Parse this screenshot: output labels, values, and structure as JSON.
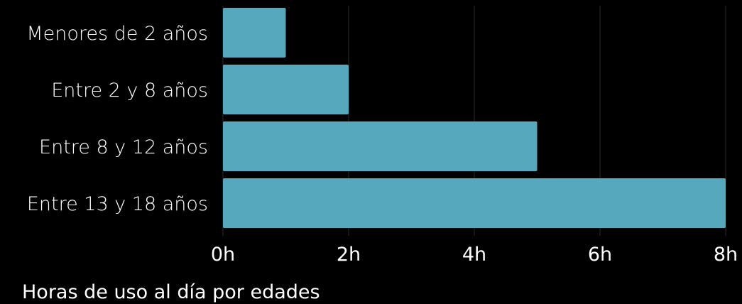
{
  "chart_data": {
    "type": "bar",
    "orientation": "horizontal",
    "categories": [
      "Menores de 2 años",
      "Entre 2 y 8 años",
      "Entre 8 y 12 años",
      "Entre 13 y 18 años"
    ],
    "values": [
      1,
      2,
      5,
      8
    ],
    "xlim": [
      0,
      8
    ],
    "xticks": [
      0,
      2,
      4,
      6,
      8
    ],
    "xtick_labels": [
      "0h",
      "2h",
      "4h",
      "6h",
      "8h"
    ],
    "caption": "Horas de uso al día por edades",
    "grid": "vertical",
    "colors": {
      "bar": "#56a8bd",
      "gridline": "#2a2a2a",
      "text": "#ffffff",
      "background": "#000000"
    }
  }
}
